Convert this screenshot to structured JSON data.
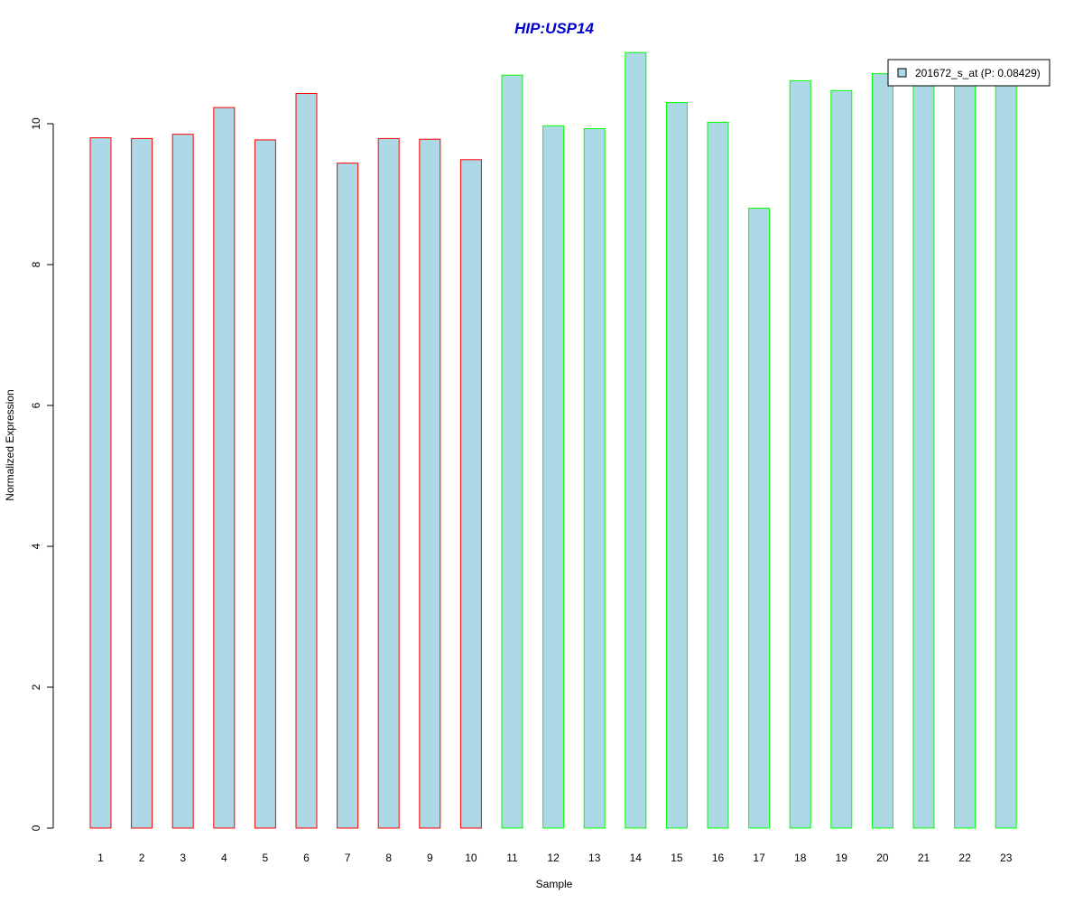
{
  "chart_data": {
    "type": "bar",
    "title": "HIP:USP14",
    "xlabel": "Sample",
    "ylabel": "Normalized Expression",
    "categories": [
      "1",
      "2",
      "3",
      "4",
      "5",
      "6",
      "7",
      "8",
      "9",
      "10",
      "11",
      "12",
      "13",
      "14",
      "15",
      "16",
      "17",
      "18",
      "19",
      "20",
      "21",
      "22",
      "23"
    ],
    "series": [
      {
        "name": "201672_s_at (P: 0.08429)",
        "values": [
          9.8,
          9.79,
          9.85,
          10.23,
          9.77,
          10.43,
          9.44,
          9.79,
          9.78,
          9.49,
          10.69,
          9.97,
          9.93,
          11.01,
          10.3,
          10.02,
          8.8,
          10.61,
          10.47,
          10.71,
          10.6,
          10.6,
          10.6
        ]
      }
    ],
    "bar_fill": "#add8e6",
    "bar_outline_colors": [
      "#ff0000",
      "#ff0000",
      "#ff0000",
      "#ff0000",
      "#ff0000",
      "#ff0000",
      "#ff0000",
      "#ff0000",
      "#ff0000",
      "#ff0000",
      "#00ff00",
      "#00ff00",
      "#00ff00",
      "#00ff00",
      "#00ff00",
      "#00ff00",
      "#00ff00",
      "#00ff00",
      "#00ff00",
      "#00ff00",
      "#00ff00",
      "#00ff00",
      "#00ff00"
    ],
    "title_color": "#0000cc",
    "yticks": [
      0,
      2,
      4,
      6,
      8,
      10
    ],
    "ylim": [
      0,
      11.01
    ],
    "grid": false,
    "legend_position": "top-right"
  }
}
